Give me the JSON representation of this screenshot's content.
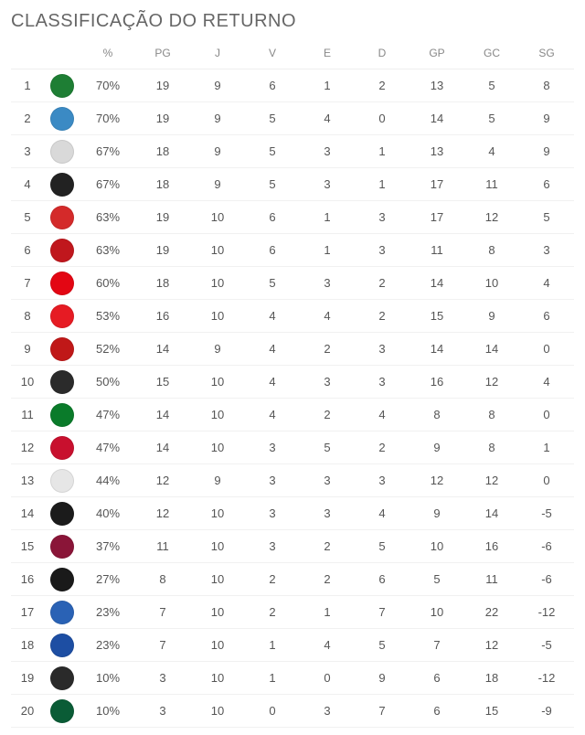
{
  "title": "CLASSIFICAÇÃO DO RETURNO",
  "columns": [
    "",
    "",
    "%",
    "PG",
    "J",
    "V",
    "E",
    "D",
    "GP",
    "GC",
    "SG"
  ],
  "badge_colors": [
    "#1e7e34",
    "#3b8ac4",
    "#d9d9d9",
    "#222222",
    "#d42a2a",
    "#c0171d",
    "#e30613",
    "#e61b23",
    "#c01818",
    "#2b2b2b",
    "#0a7b2a",
    "#c8102e",
    "#e6e6e6",
    "#1b1b1b",
    "#8a1538",
    "#1a1a1a",
    "#2a62b5",
    "#1d4ea3",
    "#2a2a2a",
    "#0a5c36"
  ],
  "rows": [
    {
      "pos": 1,
      "pct": "70%",
      "pg": 19,
      "j": 9,
      "v": 6,
      "e": 1,
      "d": 2,
      "gp": 13,
      "gc": 5,
      "sg": 8
    },
    {
      "pos": 2,
      "pct": "70%",
      "pg": 19,
      "j": 9,
      "v": 5,
      "e": 4,
      "d": 0,
      "gp": 14,
      "gc": 5,
      "sg": 9
    },
    {
      "pos": 3,
      "pct": "67%",
      "pg": 18,
      "j": 9,
      "v": 5,
      "e": 3,
      "d": 1,
      "gp": 13,
      "gc": 4,
      "sg": 9
    },
    {
      "pos": 4,
      "pct": "67%",
      "pg": 18,
      "j": 9,
      "v": 5,
      "e": 3,
      "d": 1,
      "gp": 17,
      "gc": 11,
      "sg": 6
    },
    {
      "pos": 5,
      "pct": "63%",
      "pg": 19,
      "j": 10,
      "v": 6,
      "e": 1,
      "d": 3,
      "gp": 17,
      "gc": 12,
      "sg": 5
    },
    {
      "pos": 6,
      "pct": "63%",
      "pg": 19,
      "j": 10,
      "v": 6,
      "e": 1,
      "d": 3,
      "gp": 11,
      "gc": 8,
      "sg": 3
    },
    {
      "pos": 7,
      "pct": "60%",
      "pg": 18,
      "j": 10,
      "v": 5,
      "e": 3,
      "d": 2,
      "gp": 14,
      "gc": 10,
      "sg": 4
    },
    {
      "pos": 8,
      "pct": "53%",
      "pg": 16,
      "j": 10,
      "v": 4,
      "e": 4,
      "d": 2,
      "gp": 15,
      "gc": 9,
      "sg": 6
    },
    {
      "pos": 9,
      "pct": "52%",
      "pg": 14,
      "j": 9,
      "v": 4,
      "e": 2,
      "d": 3,
      "gp": 14,
      "gc": 14,
      "sg": 0
    },
    {
      "pos": 10,
      "pct": "50%",
      "pg": 15,
      "j": 10,
      "v": 4,
      "e": 3,
      "d": 3,
      "gp": 16,
      "gc": 12,
      "sg": 4
    },
    {
      "pos": 11,
      "pct": "47%",
      "pg": 14,
      "j": 10,
      "v": 4,
      "e": 2,
      "d": 4,
      "gp": 8,
      "gc": 8,
      "sg": 0
    },
    {
      "pos": 12,
      "pct": "47%",
      "pg": 14,
      "j": 10,
      "v": 3,
      "e": 5,
      "d": 2,
      "gp": 9,
      "gc": 8,
      "sg": 1
    },
    {
      "pos": 13,
      "pct": "44%",
      "pg": 12,
      "j": 9,
      "v": 3,
      "e": 3,
      "d": 3,
      "gp": 12,
      "gc": 12,
      "sg": 0
    },
    {
      "pos": 14,
      "pct": "40%",
      "pg": 12,
      "j": 10,
      "v": 3,
      "e": 3,
      "d": 4,
      "gp": 9,
      "gc": 14,
      "sg": -5
    },
    {
      "pos": 15,
      "pct": "37%",
      "pg": 11,
      "j": 10,
      "v": 3,
      "e": 2,
      "d": 5,
      "gp": 10,
      "gc": 16,
      "sg": -6
    },
    {
      "pos": 16,
      "pct": "27%",
      "pg": 8,
      "j": 10,
      "v": 2,
      "e": 2,
      "d": 6,
      "gp": 5,
      "gc": 11,
      "sg": -6
    },
    {
      "pos": 17,
      "pct": "23%",
      "pg": 7,
      "j": 10,
      "v": 2,
      "e": 1,
      "d": 7,
      "gp": 10,
      "gc": 22,
      "sg": -12
    },
    {
      "pos": 18,
      "pct": "23%",
      "pg": 7,
      "j": 10,
      "v": 1,
      "e": 4,
      "d": 5,
      "gp": 7,
      "gc": 12,
      "sg": -5
    },
    {
      "pos": 19,
      "pct": "10%",
      "pg": 3,
      "j": 10,
      "v": 1,
      "e": 0,
      "d": 9,
      "gp": 6,
      "gc": 18,
      "sg": -12
    },
    {
      "pos": 20,
      "pct": "10%",
      "pg": 3,
      "j": 10,
      "v": 0,
      "e": 3,
      "d": 7,
      "gp": 6,
      "gc": 15,
      "sg": -9
    }
  ]
}
